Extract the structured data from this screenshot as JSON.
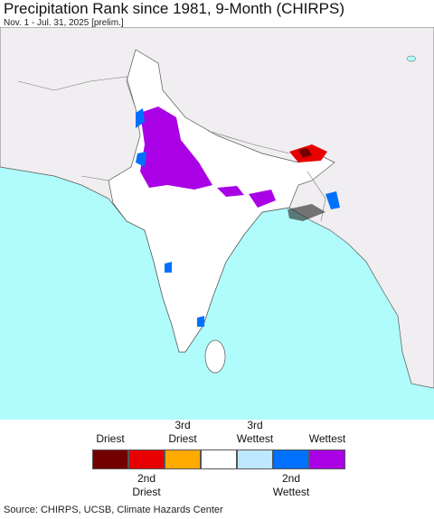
{
  "title": "Precipitation Rank since 1981, 9-Month (CHIRPS)",
  "subtitle": "Nov. 1 - Jul. 31, 2025 [prelim.]",
  "legend": [
    {
      "color": "#730000",
      "label": "Driest"
    },
    {
      "color": "#e60000",
      "label": "2nd Driest"
    },
    {
      "color": "#ffaa00",
      "label": "3rd Driest"
    },
    {
      "color": "#ffffff"
    },
    {
      "color": "#bee8ff",
      "label": "3rd Wettest"
    },
    {
      "color": "#0070ff",
      "label": "2nd Wettest"
    },
    {
      "color": "#a900e6",
      "label": "Wettest"
    }
  ],
  "source": "Source: CHIRPS, UCSB, Climate Hazards Center"
}
